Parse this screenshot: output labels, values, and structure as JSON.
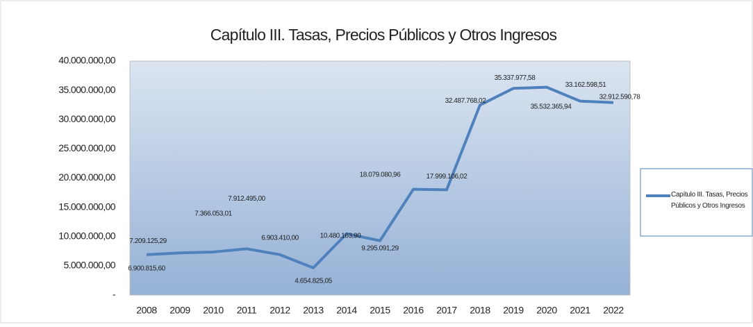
{
  "chart_data": {
    "type": "line",
    "title": "Capítulo III. Tasas, Precios Públicos y Otros Ingresos",
    "categories": [
      "2008",
      "2009",
      "2010",
      "2011",
      "2012",
      "2013",
      "2014",
      "2015",
      "2016",
      "2017",
      "2018",
      "2019",
      "2020",
      "2021",
      "2022"
    ],
    "series": [
      {
        "name": "Capítulo III. Tasas, Precios Públicos y Otros Ingresos",
        "color": "#4f81bd",
        "values": [
          6900815.6,
          7209125.29,
          7366053.01,
          7912495.0,
          6903410.0,
          4654825.05,
          10480163.9,
          9295091.29,
          18079080.96,
          17999106.02,
          32487768.02,
          35337977.58,
          35532365.94,
          33162598.51,
          32912590.78
        ],
        "value_labels": [
          "6.900.815,60",
          "7.209.125,29",
          "7.366.053,01",
          "7.912.495,00",
          "6.903.410,00",
          "4.654.825,05",
          "10.480.163,90",
          "9.295.091,29",
          "18.079.080,96",
          "17.999.106,02",
          "32.487.768,02",
          "35.337.977,58",
          "35.532.365,94",
          "33.162.598,51",
          "32.912.590,78"
        ]
      }
    ],
    "ylim": [
      0,
      40000000
    ],
    "yticks": [
      {
        "value": 0,
        "label": "-"
      },
      {
        "value": 5000000,
        "label": "5.000.000,00"
      },
      {
        "value": 10000000,
        "label": "10.000.000,00"
      },
      {
        "value": 15000000,
        "label": "15.000.000,00"
      },
      {
        "value": 20000000,
        "label": "20.000.000,00"
      },
      {
        "value": 25000000,
        "label": "25.000.000,00"
      },
      {
        "value": 30000000,
        "label": "30.000.000,00"
      },
      {
        "value": 35000000,
        "label": "35.000.000,00"
      },
      {
        "value": 40000000,
        "label": "40.000.000,00"
      }
    ],
    "grid": false,
    "legend": "right"
  }
}
